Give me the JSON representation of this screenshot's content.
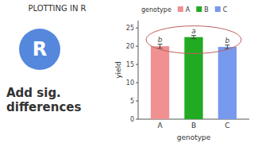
{
  "chart_data": {
    "type": "bar",
    "title": "PLOTTING IN R",
    "subtitle": "Add sig.\ndifferences",
    "logo": "R",
    "categories": [
      "A",
      "B",
      "C"
    ],
    "values": [
      20.0,
      22.5,
      19.8
    ],
    "error_bars": [
      0.55,
      0.45,
      0.5
    ],
    "sig_labels": [
      "b",
      "a",
      "b"
    ],
    "colors": [
      "#f09090",
      "#22aa22",
      "#7799ee"
    ],
    "xlabel": "genotype",
    "ylabel": "yield",
    "ylim": [
      0,
      27
    ],
    "yticks": [
      0,
      5,
      10,
      15,
      20,
      25
    ],
    "legend": "top",
    "legend_title": "genotype",
    "legend_labels": [
      "A",
      "B",
      "C"
    ]
  }
}
